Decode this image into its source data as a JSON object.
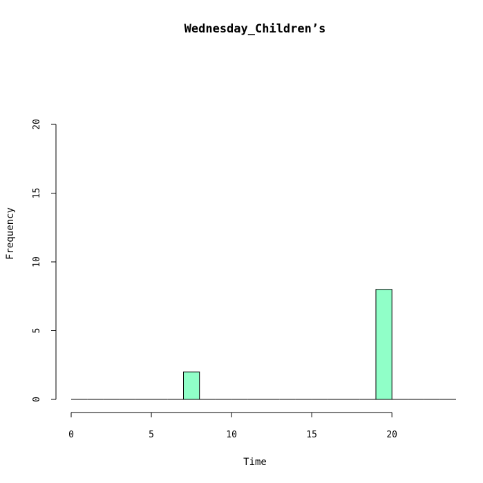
{
  "chart_data": {
    "type": "bar",
    "title": "Wednesday_Children’s",
    "xlabel": "Time",
    "ylabel": "Frequency",
    "bin_width": 1,
    "bins": [
      {
        "start": 0,
        "end": 1,
        "count": 0
      },
      {
        "start": 1,
        "end": 2,
        "count": 0
      },
      {
        "start": 2,
        "end": 3,
        "count": 0
      },
      {
        "start": 3,
        "end": 4,
        "count": 0
      },
      {
        "start": 4,
        "end": 5,
        "count": 0
      },
      {
        "start": 5,
        "end": 6,
        "count": 0
      },
      {
        "start": 6,
        "end": 7,
        "count": 0
      },
      {
        "start": 7,
        "end": 8,
        "count": 2
      },
      {
        "start": 8,
        "end": 9,
        "count": 0
      },
      {
        "start": 9,
        "end": 10,
        "count": 0
      },
      {
        "start": 10,
        "end": 11,
        "count": 0
      },
      {
        "start": 11,
        "end": 12,
        "count": 0
      },
      {
        "start": 12,
        "end": 13,
        "count": 0
      },
      {
        "start": 13,
        "end": 14,
        "count": 0
      },
      {
        "start": 14,
        "end": 15,
        "count": 0
      },
      {
        "start": 15,
        "end": 16,
        "count": 0
      },
      {
        "start": 16,
        "end": 17,
        "count": 0
      },
      {
        "start": 17,
        "end": 18,
        "count": 0
      },
      {
        "start": 18,
        "end": 19,
        "count": 0
      },
      {
        "start": 19,
        "end": 20,
        "count": 8
      },
      {
        "start": 20,
        "end": 21,
        "count": 0
      },
      {
        "start": 21,
        "end": 22,
        "count": 0
      },
      {
        "start": 22,
        "end": 23,
        "count": 0
      },
      {
        "start": 23,
        "end": 24,
        "count": 0
      }
    ],
    "xlim": [
      0,
      24
    ],
    "ylim": [
      0,
      20
    ],
    "x_ticks": [
      "0",
      "5",
      "10",
      "15",
      "20"
    ],
    "y_ticks": [
      "0",
      "5",
      "10",
      "15",
      "20"
    ],
    "bar_color": "#90FFC8",
    "grid": false,
    "legend": "none"
  }
}
